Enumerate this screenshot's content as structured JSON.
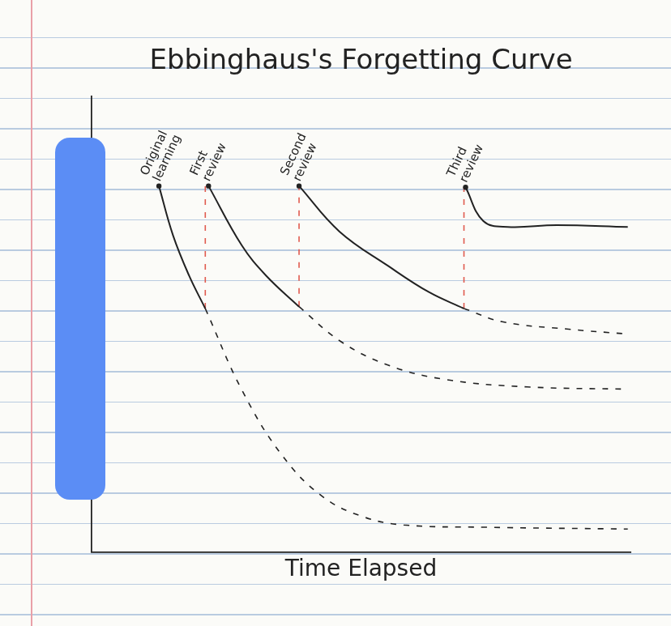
{
  "chart_data": {
    "type": "line",
    "title": "Ebbinghaus's Forgetting Curve",
    "x_label": "Time Elapsed",
    "xlim": [
      0,
      100
    ],
    "ylim": [
      0,
      100
    ],
    "tick_labels": false,
    "grid": false,
    "series": [
      {
        "color": "#222222",
        "line_style": "solid",
        "x": [
          12.5,
          15.1,
          18.1,
          21.1
        ],
        "values": [
          80.3,
          69.5,
          60.6,
          53.4
        ]
      },
      {
        "color": "#222222",
        "line_style": "dashed",
        "x": [
          21.1,
          27.9,
          35.4,
          42.9,
          50.4,
          57.9,
          73.0,
          99.5
        ],
        "values": [
          53.4,
          35.5,
          21.1,
          12.1,
          7.7,
          5.9,
          5.4,
          5.0
        ]
      },
      {
        "color": "#222222",
        "line_style": "solid",
        "x": [
          21.7,
          27.9,
          32.4,
          38.5
        ],
        "values": [
          80.3,
          67.2,
          60.6,
          53.8
        ]
      },
      {
        "color": "#222222",
        "line_style": "dashed",
        "x": [
          38.5,
          46.2,
          55.2,
          65.8,
          80.8,
          99.5
        ],
        "values": [
          53.8,
          46.2,
          40.9,
          37.8,
          36.2,
          35.7
        ]
      },
      {
        "color": "#222222",
        "line_style": "solid",
        "x": [
          38.5,
          46.0,
          55.1,
          62.6,
          69.1
        ],
        "values": [
          80.3,
          70.3,
          62.7,
          57.0,
          53.4
        ]
      },
      {
        "color": "#222222",
        "line_style": "dashed",
        "x": [
          69.1,
          76.2,
          88.2,
          99.5
        ],
        "values": [
          53.4,
          50.5,
          48.9,
          47.8
        ]
      },
      {
        "color": "#222222",
        "line_style": "solid",
        "x": [
          69.4,
          72.7,
          77.2,
          86.3,
          99.5
        ],
        "values": [
          80.0,
          72.6,
          71.3,
          71.7,
          71.3
        ]
      },
      {
        "color": "#e05a4e",
        "line_style": "dashed",
        "x": [
          21.1,
          21.1
        ],
        "values": [
          53.4,
          80.3
        ]
      },
      {
        "color": "#e05a4e",
        "line_style": "dashed",
        "x": [
          38.5,
          38.5
        ],
        "values": [
          53.8,
          80.3
        ]
      },
      {
        "color": "#e05a4e",
        "line_style": "dashed",
        "x": [
          69.1,
          69.1
        ],
        "values": [
          53.4,
          80.0
        ]
      }
    ],
    "annotations": [
      {
        "text": "Original learning",
        "x": 12.5,
        "y": 80.3
      },
      {
        "text": "First review",
        "x": 21.7,
        "y": 80.3
      },
      {
        "text": "Second review",
        "x": 38.5,
        "y": 80.3
      },
      {
        "text": "Third review",
        "x": 69.4,
        "y": 80.0
      }
    ]
  }
}
